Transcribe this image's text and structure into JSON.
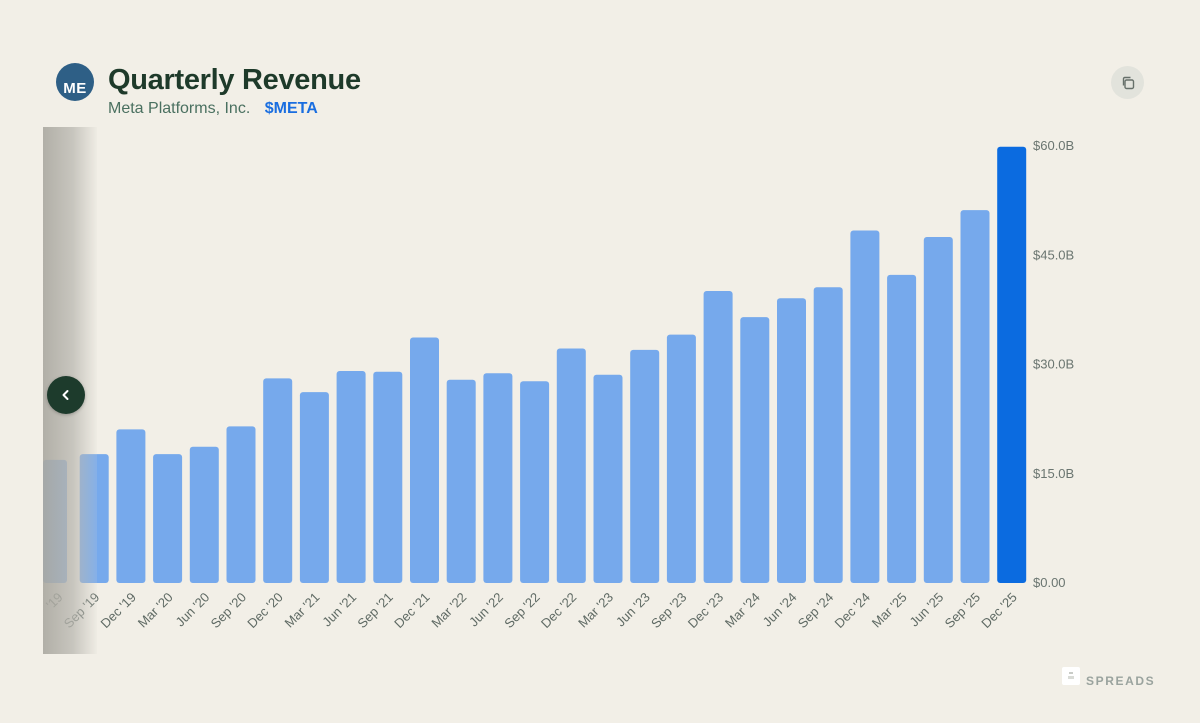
{
  "header": {
    "logo_text": "ME",
    "title": "Quarterly Revenue",
    "company": "Meta Platforms, Inc.",
    "ticker": "$META"
  },
  "icons": {
    "copy": "copy-icon",
    "scroll_left": "chevron-left-icon"
  },
  "brand": {
    "name": "SPREADS"
  },
  "colors": {
    "bar": "#76a9ec",
    "highlight_bar": "#0b6be0",
    "background": "#f2efe7",
    "title": "#1e3a2a",
    "ticker": "#1a6ee0"
  },
  "chart_data": {
    "type": "bar",
    "title": "Quarterly Revenue",
    "xlabel": "",
    "ylabel": "",
    "ylim": [
      0,
      60
    ],
    "y_ticks": [
      "$0.00",
      "$15.0B",
      "$30.0B",
      "$45.0B",
      "$60.0B"
    ],
    "grid": false,
    "categories": [
      "'19",
      "Sep '19",
      "Dec '19",
      "Mar '20",
      "Jun '20",
      "Sep '20",
      "Dec '20",
      "Mar '21",
      "Jun '21",
      "Sep '21",
      "Dec '21",
      "Mar '22",
      "Jun '22",
      "Sep '22",
      "Dec '22",
      "Mar '23",
      "Jun '23",
      "Sep '23",
      "Dec '23",
      "Mar '24",
      "Jun '24",
      "Sep '24",
      "Dec '24",
      "Mar '25",
      "Jun '25",
      "Sep '25",
      "Dec '25"
    ],
    "values": [
      16.9,
      17.7,
      21.1,
      17.7,
      18.7,
      21.5,
      28.1,
      26.2,
      29.1,
      29.0,
      33.7,
      27.9,
      28.8,
      27.7,
      32.2,
      28.6,
      32.0,
      34.1,
      40.1,
      36.5,
      39.1,
      40.6,
      48.4,
      42.3,
      47.5,
      51.2,
      59.9
    ],
    "highlight_index": 26,
    "y_axis_position": "right"
  }
}
